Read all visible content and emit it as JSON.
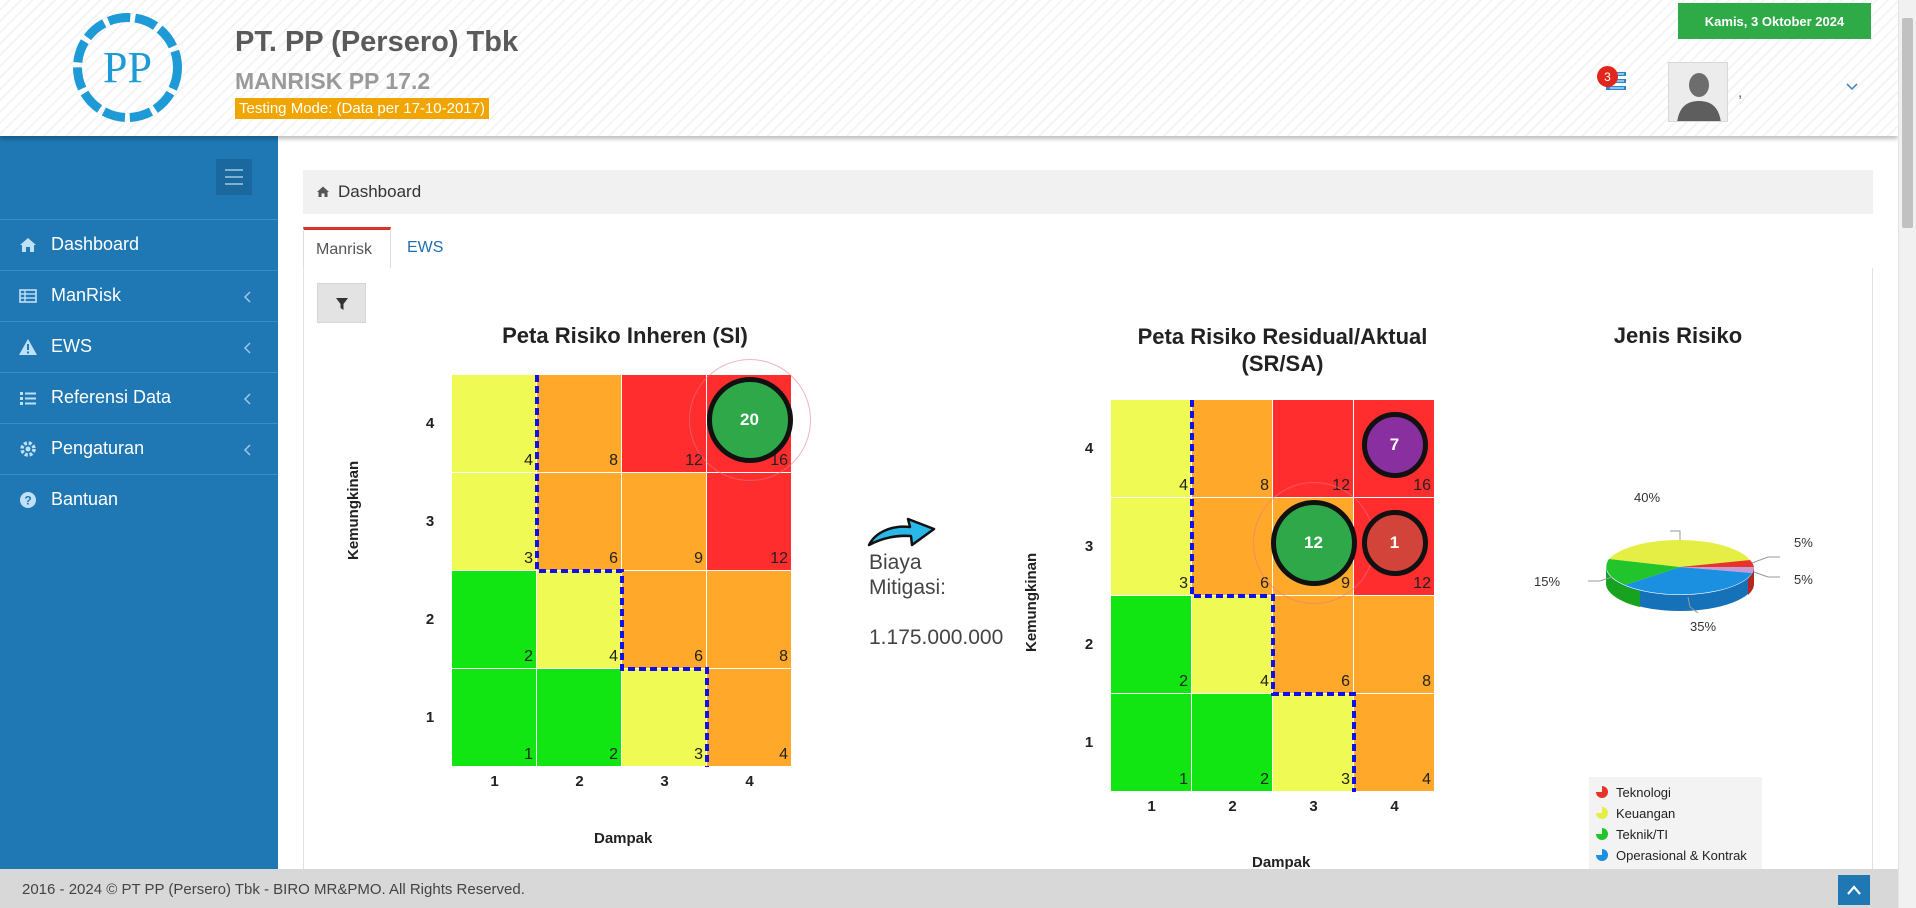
{
  "header": {
    "company_name": "PT. PP (Persero) Tbk",
    "app_version": "MANRISK PP 17.2",
    "testing_mode": "Testing Mode: (Data per 17-10-2017)",
    "date": "Kamis, 3 Oktober 2024",
    "notification_count": "3",
    "user_name": ",",
    "logo_text": "PP"
  },
  "sidebar": {
    "items": [
      {
        "label": "Dashboard",
        "icon": "home-icon"
      },
      {
        "label": "ManRisk",
        "icon": "table-icon"
      },
      {
        "label": "EWS",
        "icon": "warning-icon"
      },
      {
        "label": "Referensi Data",
        "icon": "list-icon"
      },
      {
        "label": "Pengaturan",
        "icon": "gear-icon"
      },
      {
        "label": "Bantuan",
        "icon": "question-icon"
      }
    ]
  },
  "breadcrumb": {
    "label": "Dashboard"
  },
  "tabs": [
    {
      "label": "Manrisk",
      "active": true
    },
    {
      "label": "EWS",
      "active": false
    }
  ],
  "mitigation": {
    "label": "Biaya Mitigasi:",
    "value": "1.175.000.000"
  },
  "chart_data": [
    {
      "type": "heatmap",
      "title": "Peta Risiko Inheren (SI)",
      "xlabel": "Dampak",
      "ylabel": "Kemungkinan",
      "x_ticks": [
        "1",
        "2",
        "3",
        "4"
      ],
      "y_ticks": [
        "4",
        "3",
        "2",
        "1"
      ],
      "cell_values": [
        [
          4,
          8,
          12,
          16
        ],
        [
          3,
          6,
          9,
          12
        ],
        [
          2,
          4,
          6,
          8
        ],
        [
          1,
          2,
          3,
          4
        ]
      ],
      "cell_colors": [
        [
          "#f0fa55",
          "#ffa82a",
          "#ff2d2d",
          "#ff2d2d"
        ],
        [
          "#f0fa55",
          "#ffa82a",
          "#ffa82a",
          "#ff2d2d"
        ],
        [
          "#12e612",
          "#f0fa55",
          "#ffa82a",
          "#ffa82a"
        ],
        [
          "#12e612",
          "#12e612",
          "#f0fa55",
          "#ffa82a"
        ]
      ],
      "bubbles": [
        {
          "count": "20",
          "kemungkinan": 4,
          "dampak": 4,
          "color": "#2fa84a"
        }
      ]
    },
    {
      "type": "heatmap",
      "title": "Peta Risiko Residual/Aktual (SR/SA)",
      "xlabel": "Dampak",
      "ylabel": "Kemungkinan",
      "x_ticks": [
        "1",
        "2",
        "3",
        "4"
      ],
      "y_ticks": [
        "4",
        "3",
        "2",
        "1"
      ],
      "cell_values": [
        [
          4,
          8,
          12,
          16
        ],
        [
          3,
          6,
          9,
          12
        ],
        [
          2,
          4,
          6,
          8
        ],
        [
          1,
          2,
          3,
          4
        ]
      ],
      "cell_colors": [
        [
          "#f0fa55",
          "#ffa82a",
          "#ff2d2d",
          "#ff2d2d"
        ],
        [
          "#f0fa55",
          "#ffa82a",
          "#ffa82a",
          "#ff2d2d"
        ],
        [
          "#12e612",
          "#f0fa55",
          "#ffa82a",
          "#ffa82a"
        ],
        [
          "#12e612",
          "#12e612",
          "#f0fa55",
          "#ffa82a"
        ]
      ],
      "bubbles": [
        {
          "count": "7",
          "kemungkinan": 4,
          "dampak": 4,
          "color": "#8a2fa0"
        },
        {
          "count": "12",
          "kemungkinan": 3,
          "dampak": 3,
          "color": "#2fa84a"
        },
        {
          "count": "1",
          "kemungkinan": 3,
          "dampak": 4,
          "color": "#d2443a"
        }
      ]
    },
    {
      "type": "pie",
      "title": "Jenis Risiko",
      "series": [
        {
          "name": "Teknologi",
          "value": 5,
          "label": "5%",
          "color": "#e8332b"
        },
        {
          "name": "Keuangan",
          "value": 40,
          "label": "40%",
          "color": "#e5ee45"
        },
        {
          "name": "Teknik/TI",
          "value": 15,
          "label": "15%",
          "color": "#21c42a"
        },
        {
          "name": "Operasional & Kontrak",
          "value": 35,
          "label": "35%",
          "color": "#1b8fe0"
        }
      ],
      "extra_labels": [
        "5%"
      ],
      "legend_position": "bottom"
    }
  ],
  "footer": {
    "text": "2016 - 2024 © PT PP (Persero) Tbk - BIRO MR&PMO. All Rights Reserved."
  },
  "colors": {
    "sidebar": "#1f78b4",
    "date_badge": "#2eaa46",
    "testing_badge": "#f0a500",
    "tab_accent": "#d9342b"
  }
}
